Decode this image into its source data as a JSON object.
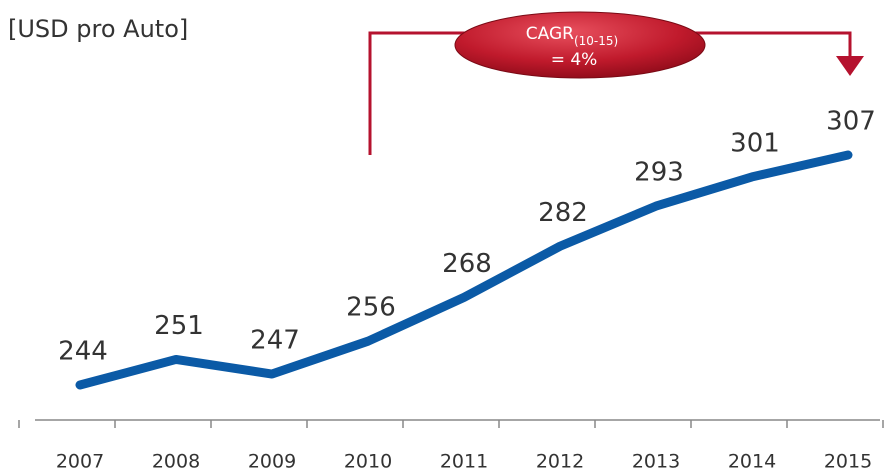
{
  "chart_data": {
    "type": "line",
    "title": "[USD pro Auto]",
    "categories": [
      "2007",
      "2008",
      "2009",
      "2010",
      "2011",
      "2012",
      "2013",
      "2014",
      "2015"
    ],
    "values": [
      244,
      251,
      247,
      256,
      268,
      282,
      293,
      301,
      307
    ],
    "color": "#0b5aa6",
    "annotation": {
      "label": "CAGR",
      "subscript": "(10-15)",
      "value": "= 4%",
      "color": "#b5122e"
    }
  }
}
